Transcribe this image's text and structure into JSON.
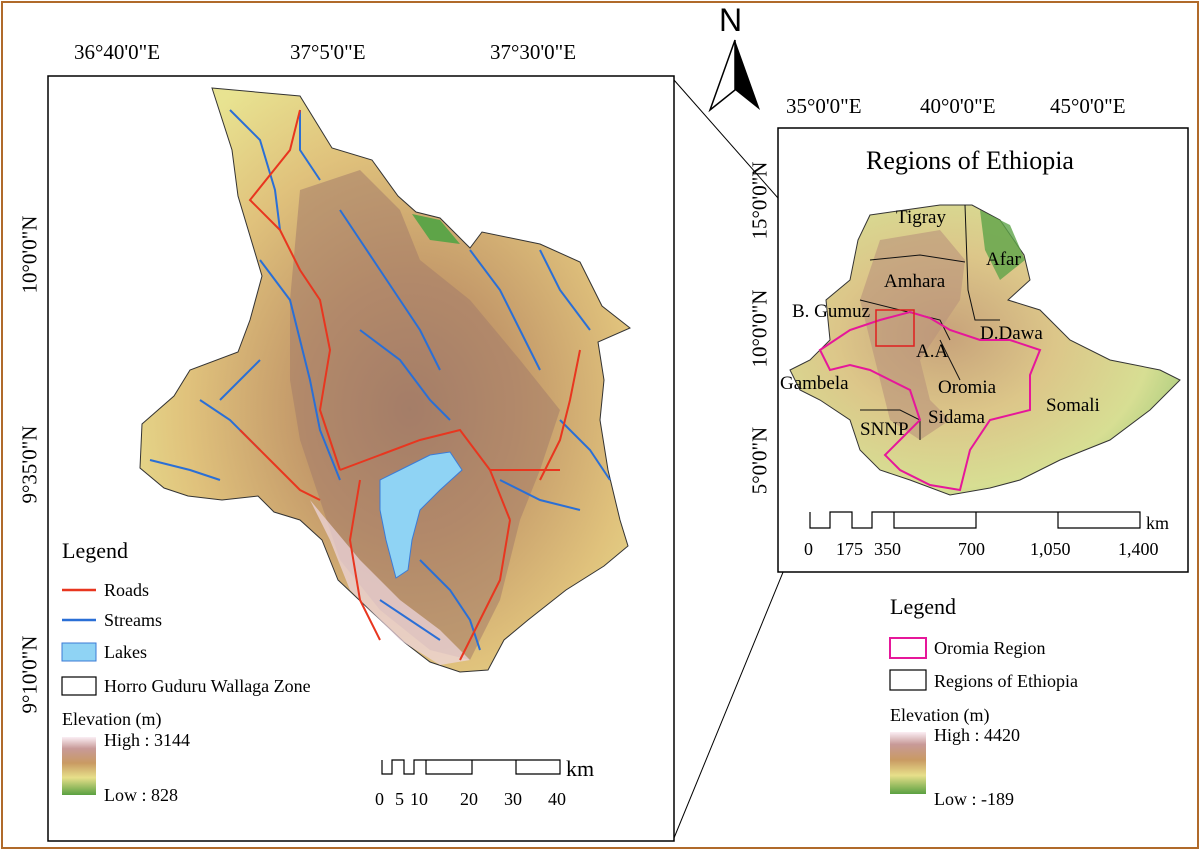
{
  "main_map": {
    "lon_labels": [
      "36°40'0\"E",
      "37°5'0\"E",
      "37°30'0\"E"
    ],
    "lat_labels": [
      "10°0'0\"N",
      "9°35'0\"N",
      "9°10'0\"N"
    ],
    "legend": {
      "title": "Legend",
      "items": [
        {
          "label": "Roads",
          "color": "#e8361f"
        },
        {
          "label": "Streams",
          "color": "#2a6fd6"
        },
        {
          "label": "Lakes",
          "color": "#8fd3f4"
        },
        {
          "label": "Horro Guduru Wallaga Zone",
          "color": "#000000"
        }
      ],
      "elevation_title": "Elevation (m)",
      "elevation_high": "High : 3144",
      "elevation_low": "Low : 828"
    },
    "scale_bar": {
      "ticks": [
        "0",
        "5",
        "10",
        "20",
        "30",
        "40"
      ],
      "unit": "km"
    }
  },
  "north_arrow": {
    "label": "N"
  },
  "inset_map": {
    "title": "Regions of Ethiopia",
    "lon_labels": [
      "35°0'0\"E",
      "40°0'0\"E",
      "45°0'0\"E"
    ],
    "lat_labels": [
      "15°0'0\"N",
      "10°0'0\"N",
      "5°0'0\"N"
    ],
    "regions": [
      "Tigray",
      "Afar",
      "Amhara",
      "B. Gumuz",
      "D.Dawa",
      "A.A",
      "Gambela",
      "Oromia",
      "Somali",
      "Sidama",
      "SNNP"
    ],
    "scale_bar": {
      "ticks": [
        "0",
        "175",
        "350",
        "700",
        "1,050",
        "1,400"
      ],
      "unit": "km"
    },
    "legend": {
      "title": "Legend",
      "items": [
        {
          "label": "Oromia Region",
          "color": "#e6179a"
        },
        {
          "label": "Regions of Ethiopia",
          "color": "#000000"
        }
      ],
      "elevation_title": "Elevation (m)",
      "elevation_high": "High : 4420",
      "elevation_low": "Low : -189"
    }
  }
}
